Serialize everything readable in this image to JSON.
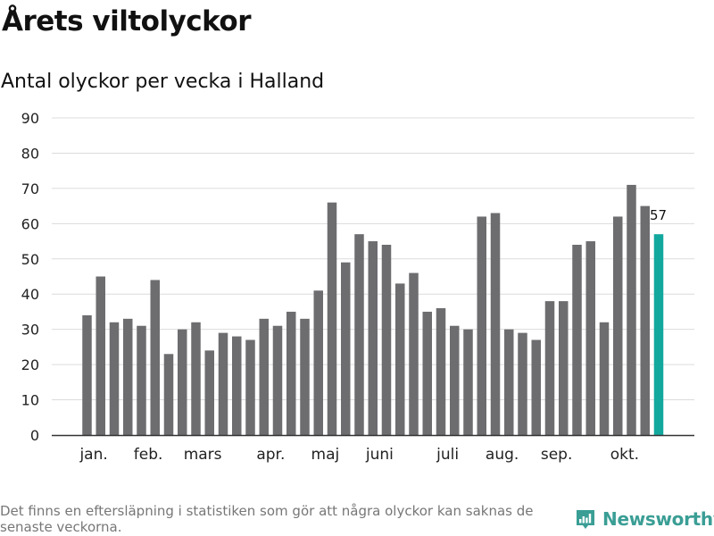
{
  "title": "Årets viltolyckor",
  "subtitle": "Antal olyckor per vecka i Halland",
  "footnote": "Det finns en eftersläpning i statistiken som gör att några olyckor kan saknas de senaste veckorna.",
  "brand": {
    "name": "Newsworthy",
    "icon": "newsworthy-logo-icon",
    "color": "#3a9e95"
  },
  "colors": {
    "bar": "#6d6d70",
    "highlight": "#13a89e",
    "grid": "#dcdcdc",
    "axis": "#333333"
  },
  "chart_data": {
    "type": "bar",
    "title": "Antal olyckor per vecka i Halland",
    "xlabel": "",
    "ylabel": "",
    "ylim": [
      0,
      90
    ],
    "yticks": [
      "0",
      "10",
      "20",
      "30",
      "40",
      "50",
      "60",
      "70",
      "80",
      "90"
    ],
    "grid": true,
    "weeks": [
      1,
      2,
      3,
      4,
      5,
      6,
      7,
      8,
      9,
      10,
      11,
      12,
      13,
      14,
      15,
      16,
      17,
      18,
      19,
      20,
      21,
      22,
      23,
      24,
      25,
      26,
      27,
      28,
      29,
      30,
      31,
      32,
      33,
      34,
      35,
      36,
      37,
      38,
      39,
      40,
      41,
      42,
      43
    ],
    "values": [
      34,
      45,
      32,
      33,
      31,
      44,
      23,
      30,
      32,
      24,
      29,
      28,
      27,
      33,
      31,
      35,
      33,
      41,
      66,
      49,
      57,
      55,
      54,
      43,
      46,
      35,
      36,
      31,
      30,
      62,
      63,
      30,
      29,
      27,
      38,
      38,
      54,
      55,
      32,
      62,
      71,
      65,
      57
    ],
    "highlight_index": 42,
    "data_labels": [
      {
        "week": 43,
        "text": "57"
      }
    ],
    "month_labels": [
      {
        "label": "jan.",
        "week": 1.5
      },
      {
        "label": "feb.",
        "week": 5.5
      },
      {
        "label": "mars",
        "week": 9.5
      },
      {
        "label": "apr.",
        "week": 14.5
      },
      {
        "label": "maj",
        "week": 18.5
      },
      {
        "label": "juni",
        "week": 22.5
      },
      {
        "label": "juli",
        "week": 27.5
      },
      {
        "label": "aug.",
        "week": 31.5
      },
      {
        "label": "sep.",
        "week": 35.5
      },
      {
        "label": "okt.",
        "week": 40.5
      }
    ]
  }
}
